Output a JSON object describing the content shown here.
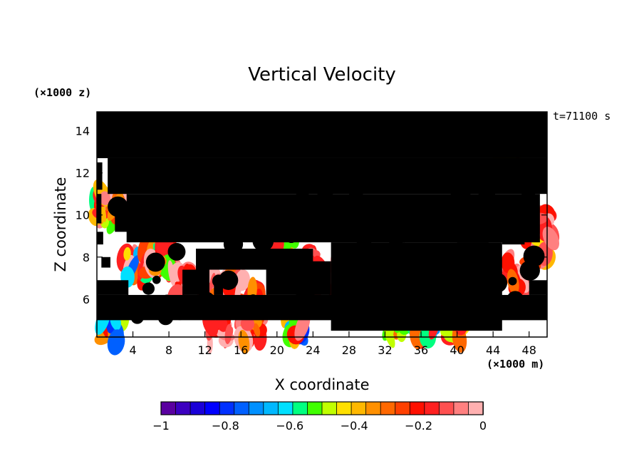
{
  "chart_data": {
    "type": "heatmap",
    "title": "Vertical Velocity",
    "xlabel": "X coordinate",
    "ylabel": "Z coordinate",
    "x_unit": "(×1000 m)",
    "y_unit": "(×1000 z)",
    "time_label": "t=71100 s",
    "xlim": [
      0,
      50
    ],
    "ylim": [
      4.2,
      14.9
    ],
    "x_ticks": [
      4,
      8,
      12,
      16,
      20,
      24,
      28,
      32,
      36,
      40,
      44,
      48
    ],
    "y_ticks": [
      6,
      8,
      10,
      12,
      14
    ],
    "colorbar": {
      "min": -1,
      "max": 0,
      "tick_values": [
        -1,
        -0.8,
        -0.6,
        -0.4,
        -0.2,
        0
      ],
      "tick_labels": [
        "−1",
        "−0.8",
        "−0.6",
        "−0.4",
        "−0.2",
        "0"
      ],
      "colors": [
        "#5a00a0",
        "#3c00c0",
        "#1a00d8",
        "#0000ff",
        "#0030ff",
        "#0060ff",
        "#0090ff",
        "#00b8ff",
        "#00e0ff",
        "#00ff80",
        "#40ff00",
        "#c0ff00",
        "#ffe000",
        "#ffb800",
        "#ff9000",
        "#ff6800",
        "#ff4000",
        "#ff1000",
        "#ff2020",
        "#ff5050",
        "#ff8080",
        "#ffb0b0"
      ]
    },
    "masked_color": "#000000",
    "value_range_note": ""
  }
}
